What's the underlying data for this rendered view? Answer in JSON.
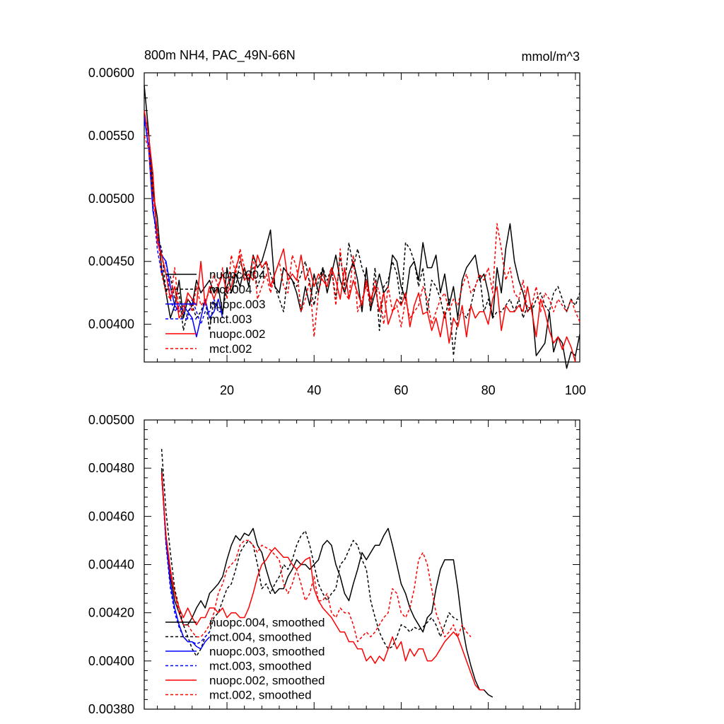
{
  "chart_data": [
    {
      "type": "line",
      "title": "800m NH4, PAC_49N-66N",
      "units": "mmol/m^3",
      "xlim": [
        1,
        101
      ],
      "ylim": [
        0.0037,
        0.006
      ],
      "x_ticks": [
        20,
        40,
        60,
        80,
        100
      ],
      "y_ticks": [
        0.004,
        0.0045,
        0.005,
        0.0055,
        0.006
      ],
      "y_tick_labels": [
        "0.00400",
        "0.00450",
        "0.00500",
        "0.00550",
        "0.00600"
      ],
      "legend_position": "lower-left",
      "series": [
        {
          "name": "nuopc.004",
          "color": "#000000",
          "dash": "solid",
          "x_start": 1,
          "values": [
            0.0059,
            0.00553,
            0.00505,
            0.00485,
            0.00444,
            0.00425,
            0.00405,
            0.00415,
            0.00435,
            0.00405,
            0.0042,
            0.00415,
            0.00435,
            0.00425,
            0.0043,
            0.00435,
            0.00425,
            0.0043,
            0.00408,
            0.00445,
            0.00425,
            0.0044,
            0.0043,
            0.00445,
            0.0043,
            0.00455,
            0.00445,
            0.0045,
            0.00462,
            0.00475,
            0.0043,
            0.00425,
            0.00445,
            0.0044,
            0.00435,
            0.00425,
            0.0041,
            0.0043,
            0.00415,
            0.0044,
            0.00425,
            0.00445,
            0.00425,
            0.0044,
            0.00455,
            0.00435,
            0.00425,
            0.0044,
            0.0045,
            0.00435,
            0.0041,
            0.00445,
            0.00412,
            0.00425,
            0.0044,
            0.00425,
            0.0043,
            0.00455,
            0.0045,
            0.0043,
            0.0042,
            0.00445,
            0.0045,
            0.00435,
            0.00465,
            0.00445,
            0.00445,
            0.00455,
            0.00425,
            0.0044,
            0.00415,
            0.0043,
            0.00405,
            0.00435,
            0.00445,
            0.0045,
            0.00455,
            0.00435,
            0.0044,
            0.00425,
            0.00405,
            0.00445,
            0.00425,
            0.0046,
            0.0048,
            0.0045,
            0.00435,
            0.00425,
            0.0041,
            0.00415,
            0.00375,
            0.0038,
            0.00385,
            0.0041,
            0.00378,
            0.0039,
            0.00385,
            0.00365,
            0.00378,
            0.00375,
            0.00392
          ]
        },
        {
          "name": "mct.004",
          "color": "#000000",
          "dash": "dashed",
          "x_start": 1,
          "values": [
            0.0056,
            0.0055,
            0.00515,
            0.0047,
            0.0046,
            0.00425,
            0.00438,
            0.0042,
            0.00425,
            0.00395,
            0.0041,
            0.00415,
            0.00405,
            0.0041,
            0.0042,
            0.00395,
            0.0042,
            0.0041,
            0.0041,
            0.0043,
            0.0044,
            0.0043,
            0.0045,
            0.0044,
            0.00435,
            0.00445,
            0.0043,
            0.0044,
            0.0045,
            0.0044,
            0.0043,
            0.0042,
            0.0041,
            0.0044,
            0.00435,
            0.0043,
            0.0044,
            0.0045,
            0.00432,
            0.00415,
            0.00435,
            0.00445,
            0.00435,
            0.00445,
            0.0042,
            0.00455,
            0.0043,
            0.00465,
            0.00445,
            0.0046,
            0.00445,
            0.00435,
            0.0041,
            0.00445,
            0.00395,
            0.0043,
            0.00435,
            0.0045,
            0.0044,
            0.00415,
            0.00465,
            0.0046,
            0.0045,
            0.0043,
            0.00445,
            0.0041,
            0.00435,
            0.0043,
            0.0042,
            0.00405,
            0.0042,
            0.00375,
            0.00405,
            0.0041,
            0.00405,
            0.00415,
            0.0043,
            0.0044,
            0.0041,
            0.0042,
            0.00405,
            0.0041,
            0.0041,
            0.00415,
            0.0042,
            0.0041,
            0.0042,
            0.00405,
            0.00415,
            0.0041,
            0.0042,
            0.00425,
            0.00415,
            0.0041,
            0.00425,
            0.0043,
            0.0042,
            0.0041,
            0.0042,
            0.00415,
            0.00425
          ]
        },
        {
          "name": "nuopc.003",
          "color": "#0000ff",
          "dash": "solid",
          "x_start": 1,
          "values": [
            0.00565,
            0.0054,
            0.0049,
            0.0047,
            0.00455,
            0.0045,
            0.0043,
            0.00415,
            0.0041,
            0.00415,
            0.0041,
            0.00405,
            0.0039,
            0.00405,
            0.0042,
            0.00405,
            0.0041,
            0.0042,
            0.00405
          ]
        },
        {
          "name": "mct.003",
          "color": "#0000ff",
          "dash": "dashed",
          "x_start": 1,
          "values": [
            0.0056,
            0.0055,
            0.00495,
            0.0046,
            0.0044,
            0.0045,
            0.0042,
            0.0041,
            0.00415,
            0.0041,
            0.00405,
            0.0042,
            0.0041,
            0.004,
            0.0041,
            0.0041,
            0.0042,
            0.0041,
            0.0041
          ]
        },
        {
          "name": "nuopc.002",
          "color": "#ff0000",
          "dash": "solid",
          "x_start": 1,
          "values": [
            0.0057,
            0.0055,
            0.0052,
            0.00465,
            0.00455,
            0.0044,
            0.0042,
            0.0043,
            0.00405,
            0.0041,
            0.00425,
            0.0042,
            0.00415,
            0.0045,
            0.00415,
            0.0043,
            0.0042,
            0.0043,
            0.0044,
            0.00425,
            0.0043,
            0.00445,
            0.00455,
            0.00435,
            0.0044,
            0.00435,
            0.00455,
            0.00445,
            0.0045,
            0.0043,
            0.0044,
            0.0045,
            0.0046,
            0.00435,
            0.0044,
            0.00435,
            0.00455,
            0.00435,
            0.00445,
            0.0043,
            0.0044,
            0.00435,
            0.0043,
            0.00445,
            0.00435,
            0.0042,
            0.00445,
            0.0042,
            0.00435,
            0.00425,
            0.00415,
            0.00435,
            0.0042,
            0.0043,
            0.0041,
            0.00425,
            0.004,
            0.0041,
            0.0042,
            0.00415,
            0.00425,
            0.00398,
            0.00415,
            0.00425,
            0.00408,
            0.0041,
            0.00395,
            0.00405,
            0.0039,
            0.0041,
            0.00385,
            0.00405,
            0.00398,
            0.00415,
            0.0039,
            0.00415,
            0.00405,
            0.0041,
            0.0041,
            0.004,
            0.0042,
            0.0043,
            0.00395,
            0.00415,
            0.0041,
            0.0041,
            0.00415,
            0.0041,
            0.0043,
            0.0041,
            0.0039,
            0.0042,
            0.0041,
            0.00395,
            0.00385,
            0.0039,
            0.0038,
            0.0039,
            0.00382,
            0.0037
          ]
        },
        {
          "name": "mct.002",
          "color": "#ff0000",
          "dash": "dashed",
          "x_start": 1,
          "values": [
            0.0055,
            0.0054,
            0.005,
            0.00475,
            0.0044,
            0.00425,
            0.0042,
            0.00445,
            0.0041,
            0.00415,
            0.0042,
            0.0041,
            0.0043,
            0.00415,
            0.0042,
            0.00425,
            0.0044,
            0.0043,
            0.00445,
            0.0042,
            0.00455,
            0.0044,
            0.0046,
            0.00445,
            0.00435,
            0.00455,
            0.0042,
            0.0043,
            0.0044,
            0.00425,
            0.0044,
            0.0045,
            0.0043,
            0.00425,
            0.00455,
            0.00445,
            0.0041,
            0.0042,
            0.00435,
            0.0039,
            0.00425,
            0.0044,
            0.0043,
            0.00445,
            0.00415,
            0.0046,
            0.00425,
            0.0042,
            0.00455,
            0.0041,
            0.0042,
            0.0043,
            0.00415,
            0.00435,
            0.00425,
            0.004,
            0.0043,
            0.0041,
            0.00415,
            0.00398,
            0.0042,
            0.00405,
            0.0041,
            0.00415,
            0.0043,
            0.0042,
            0.004,
            0.0041,
            0.0042,
            0.00425,
            0.0041,
            0.0042,
            0.00415,
            0.0043,
            0.0044,
            0.00425,
            0.0043,
            0.0044,
            0.00435,
            0.00445,
            0.00425,
            0.0048,
            0.0046,
            0.00435,
            0.00445,
            0.00425,
            0.0042,
            0.00435,
            0.0041,
            0.00415,
            0.0043,
            0.0041,
            0.00425,
            0.0042,
            0.0041,
            0.0042,
            0.00415,
            0.0041,
            0.0042,
            0.0041,
            0.00402
          ]
        }
      ]
    },
    {
      "type": "line",
      "title": "",
      "xlim": [
        1,
        101
      ],
      "ylim": [
        0.0038,
        0.005
      ],
      "x_ticks": [
        20,
        40,
        60,
        80,
        100
      ],
      "y_ticks": [
        0.0038,
        0.004,
        0.0042,
        0.0044,
        0.0046,
        0.0048,
        0.005
      ],
      "y_tick_labels": [
        "0.00380",
        "0.00400",
        "0.00420",
        "0.00440",
        "0.00460",
        "0.00480",
        "0.00500"
      ],
      "legend_position": "lower-left",
      "series": [
        {
          "name": "nuopc.004, smoothed",
          "color": "#000000",
          "dash": "solid",
          "x_start": 5,
          "values": [
            0.0048,
            0.0045,
            0.00435,
            0.00425,
            0.0042,
            0.00415,
            0.00415,
            0.00418,
            0.00422,
            0.00425,
            0.00422,
            0.00428,
            0.0043,
            0.00432,
            0.00435,
            0.00442,
            0.00448,
            0.00452,
            0.0045,
            0.00453,
            0.00452,
            0.00455,
            0.00448,
            0.00445,
            0.00438,
            0.00432,
            0.00428,
            0.0043,
            0.0043,
            0.00435,
            0.00438,
            0.00442,
            0.0044,
            0.0044,
            0.00438,
            0.0044,
            0.00442,
            0.00448,
            0.0045,
            0.00448,
            0.0044,
            0.00435,
            0.00428,
            0.00425,
            0.00432,
            0.00438,
            0.00445,
            0.00442,
            0.00445,
            0.00448,
            0.00448,
            0.00452,
            0.00455,
            0.00448,
            0.0044,
            0.00432,
            0.00428,
            0.00422,
            0.00418,
            0.00415,
            0.00412,
            0.00418,
            0.0042,
            0.0043,
            0.00438,
            0.00442,
            0.00442,
            0.00442,
            0.0043,
            0.00415,
            0.00405,
            0.00398,
            0.00392,
            0.00388,
            0.00388,
            0.00386,
            0.00385
          ]
        },
        {
          "name": "mct.004, smoothed",
          "color": "#000000",
          "dash": "dashed",
          "x_start": 5,
          "values": [
            0.00488,
            0.00462,
            0.00445,
            0.0043,
            0.00422,
            0.00415,
            0.0041,
            0.00405,
            0.00402,
            0.00405,
            0.0041,
            0.00412,
            0.00418,
            0.0042,
            0.00425,
            0.0043,
            0.00432,
            0.00438,
            0.00445,
            0.00448,
            0.0045,
            0.00448,
            0.0044,
            0.0043,
            0.00432,
            0.00428,
            0.00432,
            0.00435,
            0.0044,
            0.00438,
            0.00442,
            0.00448,
            0.00452,
            0.00454,
            0.00448,
            0.0044,
            0.00432,
            0.00428,
            0.00425,
            0.00428,
            0.0043,
            0.0044,
            0.00442,
            0.00446,
            0.0045,
            0.00448,
            0.00442,
            0.00438,
            0.00425,
            0.00418,
            0.00412,
            0.00408,
            0.00405,
            0.00406,
            0.0041,
            0.00415,
            0.00414,
            0.00412,
            0.00414,
            0.00413,
            0.00414,
            0.00416,
            0.00418,
            0.00415,
            0.0041,
            0.00415,
            0.0042,
            0.00418,
            0.00417
          ]
        },
        {
          "name": "nuopc.003, smoothed",
          "color": "#0000ff",
          "dash": "solid",
          "x_start": 5,
          "values": [
            0.00478,
            0.0045,
            0.00432,
            0.00422,
            0.00415,
            0.0041,
            0.00408,
            0.00408,
            0.00406,
            0.00405,
            0.00408,
            0.0041
          ]
        },
        {
          "name": "mct.003, smoothed",
          "color": "#0000ff",
          "dash": "dashed",
          "x_start": 5,
          "values": [
            0.00478,
            0.00448,
            0.0043,
            0.0042,
            0.00414,
            0.0041,
            0.00408,
            0.00408,
            0.00407,
            0.00408,
            0.0041,
            0.00412
          ]
        },
        {
          "name": "nuopc.002, smoothed",
          "color": "#ff0000",
          "dash": "solid",
          "x_start": 5,
          "values": [
            0.00478,
            0.00452,
            0.00438,
            0.00428,
            0.00422,
            0.00418,
            0.00422,
            0.00418,
            0.00415,
            0.00418,
            0.00418,
            0.00422,
            0.00422,
            0.0042,
            0.00422,
            0.00418,
            0.0042,
            0.0042,
            0.00418,
            0.00418,
            0.00422,
            0.00428,
            0.00435,
            0.0044,
            0.00442,
            0.00445,
            0.00447,
            0.00445,
            0.00443,
            0.00443,
            0.0044,
            0.00438,
            0.0044,
            0.00442,
            0.00443,
            0.0043,
            0.00425,
            0.00422,
            0.0042,
            0.00418,
            0.00415,
            0.00412,
            0.00412,
            0.00408,
            0.00408,
            0.00405,
            0.00405,
            0.004,
            0.00402,
            0.00399,
            0.00402,
            0.004,
            0.00405,
            0.0041,
            0.00405,
            0.00408,
            0.004,
            0.00405,
            0.00402,
            0.00405,
            0.00405,
            0.004,
            0.004,
            0.00402,
            0.00405,
            0.00408,
            0.0041,
            0.00412,
            0.0041,
            0.00405,
            0.004,
            0.00395,
            0.0039,
            0.00388,
            0.00388
          ]
        },
        {
          "name": "mct.002, smoothed",
          "color": "#ff0000",
          "dash": "dashed",
          "x_start": 5,
          "values": [
            0.00476,
            0.00452,
            0.00436,
            0.00428,
            0.0042,
            0.00415,
            0.00415,
            0.00412,
            0.0041,
            0.0041,
            0.00412,
            0.00415,
            0.0042,
            0.00428,
            0.00432,
            0.00438,
            0.0044,
            0.00442,
            0.00448,
            0.0045,
            0.0045,
            0.00448,
            0.00445,
            0.00448,
            0.00447,
            0.00446,
            0.00444,
            0.00442,
            0.00432,
            0.00428,
            0.00432,
            0.00438,
            0.00432,
            0.00425,
            0.00428,
            0.00435,
            0.00425,
            0.00425,
            0.00428,
            0.0042,
            0.00418,
            0.00422,
            0.0042,
            0.0042,
            0.00415,
            0.00408,
            0.0041,
            0.00412,
            0.0041,
            0.00412,
            0.00415,
            0.00418,
            0.0042,
            0.0043,
            0.00428,
            0.0042,
            0.00418,
            0.00422,
            0.0043,
            0.00442,
            0.00445,
            0.0044,
            0.0043,
            0.0042,
            0.00415,
            0.0041,
            0.00412,
            0.00415,
            0.0041,
            0.00415,
            0.00412,
            0.0041
          ]
        }
      ]
    }
  ]
}
